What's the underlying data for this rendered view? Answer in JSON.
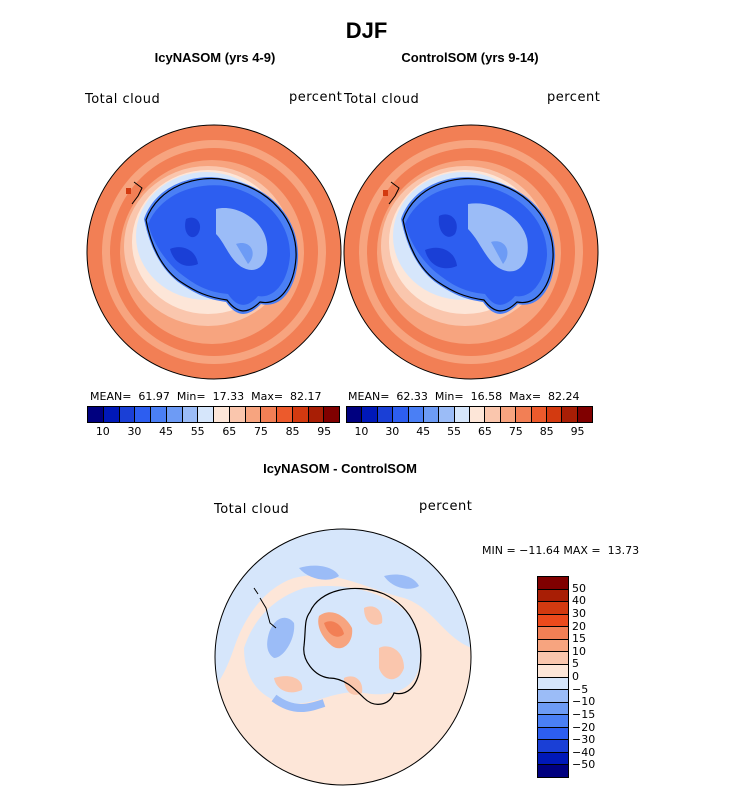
{
  "title": "DJF",
  "panels": [
    {
      "title": "IcyNASOM (yrs 4-9)",
      "left_label": "Total cloud",
      "right_label": "percent",
      "stats": "MEAN=  61.97  Min=  17.33  Max=  82.17"
    },
    {
      "title": "ControlSOM (yrs 9-14)",
      "left_label": "Total cloud",
      "right_label": "percent",
      "stats": "MEAN=  62.33  Min=  16.58  Max=  82.24"
    }
  ],
  "diff_panel": {
    "title": "IcyNASOM - ControlSOM",
    "left_label": "Total cloud",
    "right_label": "percent",
    "stats": "MIN = −11.64 MAX =  13.73"
  },
  "colorbar_abs": {
    "ticks": [
      "10",
      "30",
      "45",
      "55",
      "65",
      "75",
      "85",
      "95"
    ],
    "colors": [
      "#00007f",
      "#0018b8",
      "#1a3fd6",
      "#2d5ef0",
      "#4a7ff5",
      "#6d9bf5",
      "#9bbcf7",
      "#d6e6fb",
      "#fde6d8",
      "#fac6ad",
      "#f7a47f",
      "#f27f55",
      "#ec5a2c",
      "#d33a10",
      "#a81e05",
      "#800000"
    ]
  },
  "colorbar_diff": {
    "labels": [
      "50",
      "40",
      "30",
      "20",
      "15",
      "10",
      "5",
      "0",
      "−5",
      "−10",
      "−15",
      "−20",
      "−30",
      "−40",
      "−50"
    ],
    "colors": [
      "#800000",
      "#a81e05",
      "#d33a10",
      "#ec4a1c",
      "#f27f55",
      "#f7a47f",
      "#fac6ad",
      "#fde6d8",
      "#d6e6fb",
      "#9bbcf7",
      "#6d9bf5",
      "#4a7ff5",
      "#2d5ef0",
      "#1a3fd6",
      "#0018b8",
      "#00007f"
    ]
  }
}
